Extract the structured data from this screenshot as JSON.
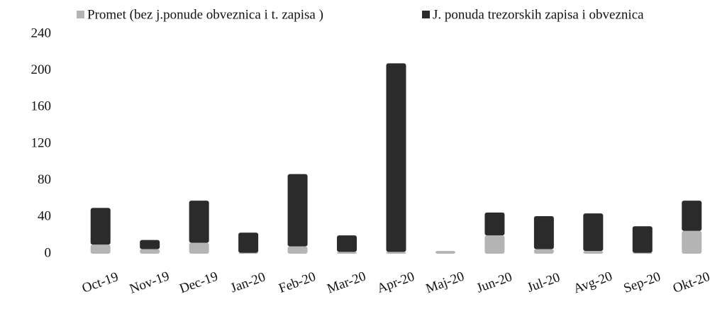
{
  "chart_data": {
    "type": "stacked_bar",
    "categories": [
      "Oct-19",
      "Nov-19",
      "Dec-19",
      "Jan-20",
      "Feb-20",
      "Mar-20",
      "Apr-20",
      "Maj-20",
      "Jun-20",
      "Jul-20",
      "Avg-20",
      "Sep-20",
      "Okt-20"
    ],
    "series": [
      {
        "name": "Promet (bez j.ponude obveznica i t. zapisa )",
        "color": "#b4b4b4",
        "values": [
          10,
          5,
          12,
          1,
          8,
          2,
          2,
          3,
          20,
          5,
          3,
          1,
          25
        ]
      },
      {
        "name": "J. ponuda  trezorskih zapisa i obveznica",
        "color": "#2b2b2b",
        "values": [
          40,
          10,
          46,
          22,
          79,
          18,
          206,
          0,
          25,
          36,
          41,
          29,
          33
        ]
      }
    ],
    "ylim": [
      0,
      240
    ],
    "yticks": [
      0,
      40,
      80,
      120,
      160,
      200,
      240
    ],
    "grid": false
  }
}
